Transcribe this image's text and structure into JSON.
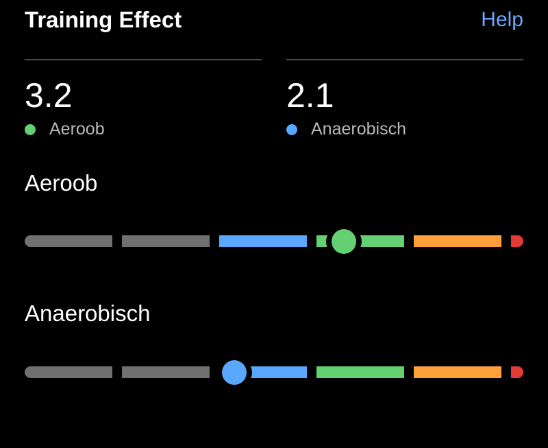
{
  "header": {
    "title": "Training Effect",
    "help_label": "Help"
  },
  "metrics": [
    {
      "value": "3.2",
      "label": "Aeroob",
      "color": "#63d071"
    },
    {
      "value": "2.1",
      "label": "Anaerobisch",
      "color": "#5aa7ff"
    }
  ],
  "scales": [
    {
      "title": "Aeroob",
      "value": 3.2,
      "thumb_color": "#63d071"
    },
    {
      "title": "Anaerobisch",
      "value": 2.1,
      "thumb_color": "#5aa7ff"
    }
  ],
  "scale_range": [
    0,
    5
  ],
  "segment_colors": [
    "#707070",
    "#707070",
    "#5aa7ff",
    "#63d071",
    "#ff9f3a",
    "#e23a37"
  ]
}
